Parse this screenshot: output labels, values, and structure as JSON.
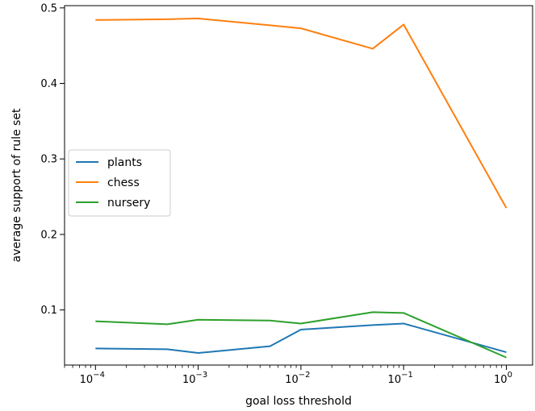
{
  "chart_data": {
    "type": "line",
    "xlabel": "goal loss threshold",
    "ylabel": "average support of rule set",
    "xscale": "log",
    "x": [
      0.0001,
      0.0005,
      0.001,
      0.005,
      0.01,
      0.05,
      0.1,
      1
    ],
    "xlim": [
      5e-05,
      1.8
    ],
    "ylim": [
      0.027,
      0.503
    ],
    "x_ticks": [
      {
        "value": 0.0001,
        "base": "10",
        "exp": "−4"
      },
      {
        "value": 0.001,
        "base": "10",
        "exp": "−3"
      },
      {
        "value": 0.01,
        "base": "10",
        "exp": "−2"
      },
      {
        "value": 0.1,
        "base": "10",
        "exp": "−1"
      },
      {
        "value": 1,
        "base": "10",
        "exp": "0"
      }
    ],
    "y_ticks": [
      {
        "value": 0.1,
        "label": "0.1"
      },
      {
        "value": 0.2,
        "label": "0.2"
      },
      {
        "value": 0.3,
        "label": "0.3"
      },
      {
        "value": 0.4,
        "label": "0.4"
      },
      {
        "value": 0.5,
        "label": "0.5"
      }
    ],
    "grid": false,
    "legend_position": "center-left",
    "series": [
      {
        "name": "plants",
        "color": "#1f77b4",
        "values": [
          0.049,
          0.048,
          0.043,
          0.052,
          0.074,
          0.08,
          0.082,
          0.044
        ]
      },
      {
        "name": "chess",
        "color": "#ff7f0e",
        "values": [
          0.484,
          0.485,
          0.486,
          0.477,
          0.473,
          0.446,
          0.478,
          0.235
        ]
      },
      {
        "name": "nursery",
        "color": "#2ca02c",
        "values": [
          0.085,
          0.081,
          0.087,
          0.086,
          0.082,
          0.097,
          0.096,
          0.037
        ]
      }
    ]
  }
}
